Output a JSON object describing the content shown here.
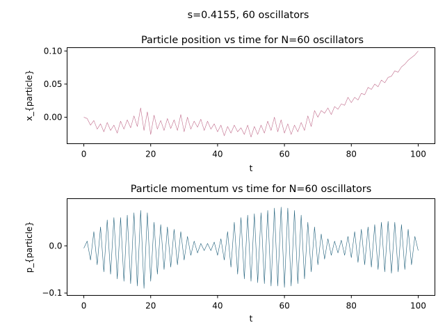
{
  "figure": {
    "suptitle": "s=0.4155, 60 oscillators"
  },
  "chart_data": [
    {
      "type": "line",
      "title": "Particle position vs time for N=60 oscillators",
      "xlabel": "t",
      "ylabel": "x_{particle}",
      "xlim": [
        -5,
        105
      ],
      "ylim": [
        -0.04,
        0.105
      ],
      "xticks": [
        0,
        20,
        40,
        60,
        80,
        100
      ],
      "xtick_labels": [
        "0",
        "20",
        "40",
        "60",
        "80",
        "100"
      ],
      "yticks": [
        0.0,
        0.05,
        0.1
      ],
      "ytick_labels": [
        "0.00",
        "0.05",
        "0.10"
      ],
      "grid": false,
      "color": "#c06a8a",
      "series": [
        {
          "x": [
            0,
            1,
            2,
            3,
            4,
            5,
            6,
            7,
            8,
            9,
            10,
            11,
            12,
            13,
            14,
            15,
            16,
            17,
            18,
            19,
            20,
            21,
            22,
            23,
            24,
            25,
            26,
            27,
            28,
            29,
            30,
            31,
            32,
            33,
            34,
            35,
            36,
            37,
            38,
            39,
            40,
            41,
            42,
            43,
            44,
            45,
            46,
            47,
            48,
            49,
            50,
            51,
            52,
            53,
            54,
            55,
            56,
            57,
            58,
            59,
            60,
            61,
            62,
            63,
            64,
            65,
            66,
            67,
            68,
            69,
            70,
            71,
            72,
            73,
            74,
            75,
            76,
            77,
            78,
            79,
            80,
            81,
            82,
            83,
            84,
            85,
            86,
            87,
            88,
            89,
            90,
            91,
            92,
            93,
            94,
            95,
            96,
            97,
            98,
            99,
            100
          ],
          "values": [
            0.0,
            -0.002,
            -0.012,
            -0.005,
            -0.018,
            -0.01,
            -0.022,
            -0.008,
            -0.02,
            -0.012,
            -0.024,
            -0.006,
            -0.018,
            -0.004,
            -0.016,
            0.002,
            -0.014,
            0.014,
            -0.02,
            0.008,
            -0.026,
            0.003,
            -0.018,
            -0.005,
            -0.02,
            -0.002,
            -0.017,
            -0.004,
            -0.02,
            0.004,
            -0.022,
            0.0,
            -0.018,
            -0.006,
            -0.015,
            -0.003,
            -0.02,
            -0.006,
            -0.018,
            -0.01,
            -0.022,
            -0.012,
            -0.028,
            -0.014,
            -0.024,
            -0.012,
            -0.022,
            -0.016,
            -0.026,
            -0.012,
            -0.03,
            -0.014,
            -0.026,
            -0.012,
            -0.024,
            -0.006,
            -0.02,
            0.0,
            -0.022,
            -0.004,
            -0.024,
            -0.01,
            -0.026,
            -0.012,
            -0.022,
            -0.008,
            -0.02,
            0.002,
            -0.014,
            0.01,
            0.0,
            0.01,
            0.006,
            0.014,
            0.004,
            0.016,
            0.012,
            0.02,
            0.018,
            0.03,
            0.022,
            0.03,
            0.026,
            0.036,
            0.034,
            0.045,
            0.042,
            0.05,
            0.046,
            0.056,
            0.052,
            0.06,
            0.062,
            0.07,
            0.068,
            0.076,
            0.08,
            0.086,
            0.09,
            0.094,
            0.1
          ]
        }
      ]
    },
    {
      "type": "line",
      "title": "Particle momentum vs time for N=60 oscillators",
      "xlabel": "t",
      "ylabel": "p_{particle}",
      "xlim": [
        -5,
        105
      ],
      "ylim": [
        -0.105,
        0.1
      ],
      "xticks": [
        0,
        20,
        40,
        60,
        80,
        100
      ],
      "xtick_labels": [
        "0",
        "20",
        "40",
        "60",
        "80",
        "100"
      ],
      "yticks": [
        -0.1,
        0.0
      ],
      "ytick_labels": [
        "−0.1",
        "0.0"
      ],
      "grid": false,
      "color": "#1f5f7a",
      "series": [
        {
          "x": [
            0,
            1,
            2,
            3,
            4,
            5,
            6,
            7,
            8,
            9,
            10,
            11,
            12,
            13,
            14,
            15,
            16,
            17,
            18,
            19,
            20,
            21,
            22,
            23,
            24,
            25,
            26,
            27,
            28,
            29,
            30,
            31,
            32,
            33,
            34,
            35,
            36,
            37,
            38,
            39,
            40,
            41,
            42,
            43,
            44,
            45,
            46,
            47,
            48,
            49,
            50,
            51,
            52,
            53,
            54,
            55,
            56,
            57,
            58,
            59,
            60,
            61,
            62,
            63,
            64,
            65,
            66,
            67,
            68,
            69,
            70,
            71,
            72,
            73,
            74,
            75,
            76,
            77,
            78,
            79,
            80,
            81,
            82,
            83,
            84,
            85,
            86,
            87,
            88,
            89,
            90,
            91,
            92,
            93,
            94,
            95,
            96,
            97,
            98,
            99,
            100
          ],
          "values": [
            -0.005,
            0.01,
            -0.03,
            0.03,
            -0.04,
            0.04,
            -0.055,
            0.055,
            -0.06,
            0.06,
            -0.07,
            0.06,
            -0.075,
            0.065,
            -0.08,
            0.07,
            -0.085,
            0.075,
            -0.09,
            0.07,
            -0.075,
            0.05,
            -0.06,
            0.045,
            -0.05,
            0.04,
            -0.045,
            0.035,
            -0.04,
            0.03,
            -0.03,
            0.02,
            -0.02,
            0.01,
            -0.015,
            0.005,
            -0.01,
            0.005,
            -0.01,
            0.008,
            -0.02,
            0.015,
            -0.03,
            0.03,
            -0.045,
            0.05,
            -0.06,
            0.06,
            -0.07,
            0.065,
            -0.075,
            0.068,
            -0.078,
            0.07,
            -0.08,
            0.075,
            -0.085,
            0.08,
            -0.085,
            0.082,
            -0.088,
            0.08,
            -0.085,
            0.075,
            -0.08,
            0.065,
            -0.07,
            0.05,
            -0.055,
            0.04,
            -0.04,
            0.025,
            -0.028,
            0.015,
            -0.02,
            0.01,
            -0.015,
            0.012,
            -0.02,
            0.02,
            -0.025,
            0.03,
            -0.035,
            0.035,
            -0.04,
            0.04,
            -0.045,
            0.045,
            -0.05,
            0.05,
            -0.055,
            0.052,
            -0.058,
            0.05,
            -0.055,
            0.045,
            -0.05,
            0.035,
            -0.04,
            0.02,
            -0.01
          ]
        }
      ]
    }
  ]
}
